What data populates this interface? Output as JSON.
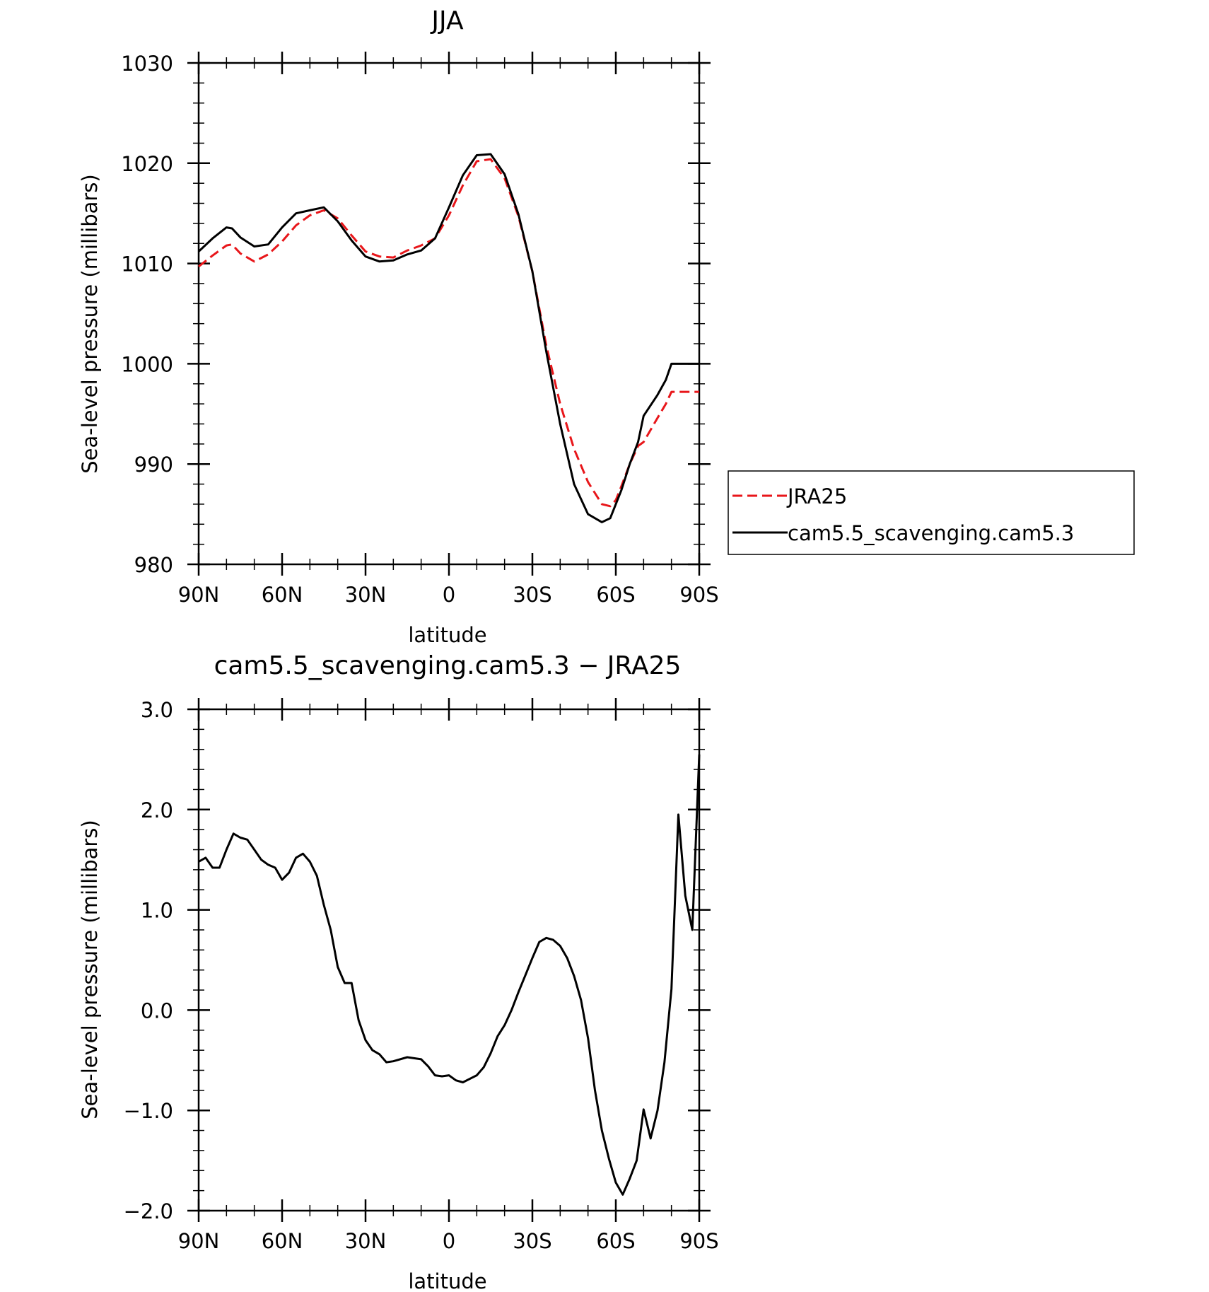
{
  "chart_data": [
    {
      "type": "line",
      "title": "JJA",
      "xlabel": "latitude",
      "ylabel": "Sea-level pressure (millibars)",
      "xlim": [
        90,
        -90
      ],
      "ylim": [
        980,
        1030
      ],
      "xtick_values": [
        90,
        60,
        30,
        0,
        -30,
        -60,
        -90
      ],
      "xtick_labels": [
        "90N",
        "60N",
        "30N",
        "0",
        "30S",
        "60S",
        "90S"
      ],
      "ytick_values": [
        980,
        990,
        1000,
        1010,
        1020,
        1030
      ],
      "ytick_labels": [
        "980",
        "990",
        "1000",
        "1010",
        "1020",
        "1030"
      ],
      "grid": false,
      "legend_position": "outside-right",
      "x": [
        90,
        85,
        80,
        78,
        75,
        70,
        65,
        60,
        55,
        50,
        45,
        40,
        35,
        30,
        25,
        20,
        15,
        10,
        5,
        0,
        -5,
        -10,
        -15,
        -20,
        -25,
        -30,
        -35,
        -40,
        -45,
        -50,
        -55,
        -58,
        -60,
        -62,
        -65,
        -68,
        -70,
        -75,
        -78,
        -80,
        -83,
        -85,
        -88,
        -90
      ],
      "series": [
        {
          "name": "JRA25",
          "color": "#e8161a",
          "dash": "dashed",
          "values": [
            1009.7,
            1010.8,
            1011.8,
            1011.9,
            1011.0,
            1010.2,
            1010.9,
            1012.2,
            1013.8,
            1014.8,
            1015.3,
            1014.5,
            1012.8,
            1011.2,
            1010.7,
            1010.6,
            1011.3,
            1011.8,
            1012.5,
            1014.8,
            1017.8,
            1020.2,
            1020.4,
            1018.5,
            1014.7,
            1009.2,
            1001.8,
            996.0,
            991.5,
            988.2,
            986.0,
            985.8,
            986.4,
            987.8,
            990.0,
            991.8,
            992.2,
            994.6,
            996.0,
            997.2,
            997.2,
            997.2,
            997.2,
            997.2
          ]
        },
        {
          "name": "cam5.5_scavenging.cam5.3",
          "color": "#000000",
          "dash": "solid",
          "values": [
            1011.2,
            1012.5,
            1013.6,
            1013.5,
            1012.6,
            1011.7,
            1011.9,
            1013.6,
            1015.0,
            1015.3,
            1015.6,
            1014.2,
            1012.3,
            1010.7,
            1010.2,
            1010.3,
            1010.9,
            1011.3,
            1012.5,
            1015.6,
            1018.8,
            1020.8,
            1020.9,
            1018.9,
            1014.9,
            1009.2,
            1001.2,
            994.0,
            988.0,
            985.0,
            984.2,
            984.6,
            986.0,
            987.4,
            990.0,
            992.2,
            994.8,
            996.9,
            998.4,
            1000.0,
            1000.0,
            1000.0,
            1000.0,
            1000.0
          ]
        }
      ]
    },
    {
      "type": "line",
      "title": "cam5.5_scavenging.cam5.3 − JRA25",
      "xlabel": "latitude",
      "ylabel": "Sea-level pressure (millibars)",
      "xlim": [
        90,
        -90
      ],
      "ylim": [
        -2.0,
        3.0
      ],
      "xtick_values": [
        90,
        60,
        30,
        0,
        -30,
        -60,
        -90
      ],
      "xtick_labels": [
        "90N",
        "60N",
        "30N",
        "0",
        "30S",
        "60S",
        "90S"
      ],
      "ytick_values": [
        -2,
        -1,
        0,
        1,
        2,
        3
      ],
      "ytick_labels": [
        "−2.0",
        "−1.0",
        "0.0",
        "1.0",
        "2.0",
        "3.0"
      ],
      "grid": false,
      "series": [
        {
          "color": "#000000",
          "dash": "solid",
          "x": [
            90,
            87.5,
            85,
            82.5,
            80,
            77.5,
            75,
            72.5,
            70,
            67.5,
            65,
            62.5,
            60,
            57.5,
            55,
            52.5,
            50,
            47.5,
            45,
            42.5,
            40,
            37.5,
            35,
            32.5,
            30,
            27.5,
            25,
            22.5,
            20,
            15,
            10,
            7.5,
            5,
            2.5,
            0,
            -2.5,
            -5,
            -10,
            -12.5,
            -15,
            -17.5,
            -20,
            -22.5,
            -25,
            -27.5,
            -30,
            -32.5,
            -35,
            -37.5,
            -40,
            -42.5,
            -45,
            -47.5,
            -50,
            -52.5,
            -55,
            -57.5,
            -60,
            -62.5,
            -65,
            -67.5,
            -70,
            -72.5,
            -75,
            -77.5,
            -80,
            -82.5,
            -85,
            -87.5,
            -90
          ],
          "values": [
            1.48,
            1.52,
            1.42,
            1.42,
            1.6,
            1.76,
            1.72,
            1.7,
            1.6,
            1.5,
            1.45,
            1.42,
            1.3,
            1.37,
            1.52,
            1.56,
            1.48,
            1.34,
            1.05,
            0.8,
            0.43,
            0.27,
            0.27,
            -0.1,
            -0.3,
            -0.4,
            -0.44,
            -0.52,
            -0.51,
            -0.47,
            -0.49,
            -0.56,
            -0.65,
            -0.66,
            -0.65,
            -0.7,
            -0.72,
            -0.65,
            -0.57,
            -0.43,
            -0.26,
            -0.15,
            0.0,
            0.18,
            0.35,
            0.52,
            0.68,
            0.72,
            0.7,
            0.64,
            0.52,
            0.34,
            0.1,
            -0.28,
            -0.8,
            -1.2,
            -1.48,
            -1.72,
            -1.84,
            -1.68,
            -1.5,
            -0.99,
            -1.28,
            -1.0,
            -0.52,
            0.21,
            1.95,
            1.14,
            0.8,
            2.55
          ]
        }
      ]
    }
  ]
}
